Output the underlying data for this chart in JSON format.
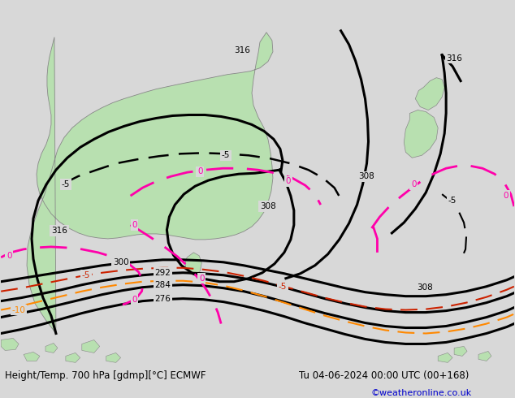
{
  "title_left": "Height/Temp. 700 hPa [gdmp][°C] ECMWF",
  "title_right": "Tu 04-06-2024 00:00 UTC (00+168)",
  "credit": "©weatheronline.co.uk",
  "sea_color": "#d8d8d8",
  "land_color": "#b8e0b0",
  "land_border_color": "#888888",
  "height_color": "#000000",
  "temp_0_color": "#ff00aa",
  "temp_neg5_color": "#cc2200",
  "temp_neg10_color": "#ff8800",
  "bottom_bar_color": "#ffffff",
  "bottom_text_color": "#000000",
  "credit_color": "#0000cc",
  "figsize": [
    6.34,
    4.9
  ],
  "dpi": 100
}
